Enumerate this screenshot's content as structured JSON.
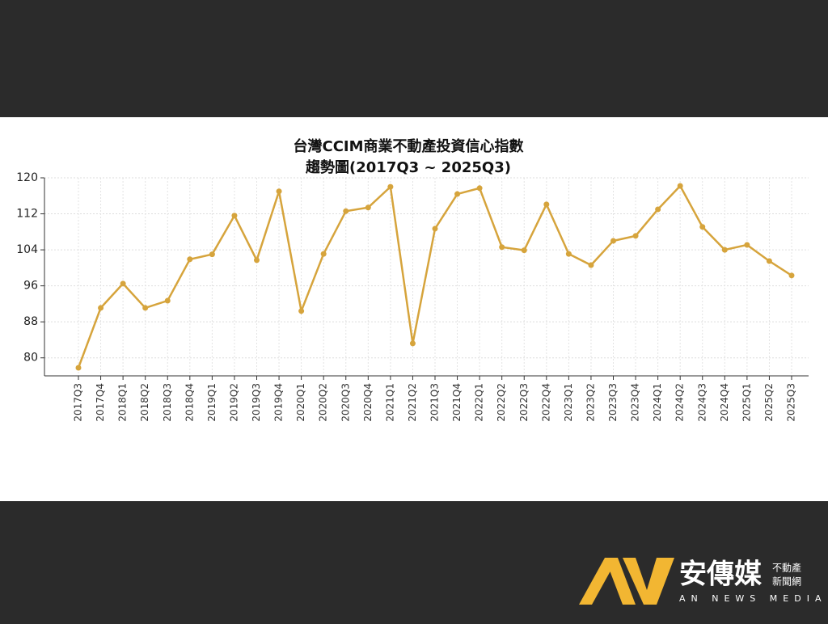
{
  "chart_data": {
    "type": "line",
    "title": "台灣CCIM商業不動產投資信心指數",
    "subtitle": "趨勢圖(2017Q3 ~ 2025Q3)",
    "categories": [
      "2017Q3",
      "2017Q4",
      "2018Q1",
      "2018Q2",
      "2018Q3",
      "2018Q4",
      "2019Q1",
      "2019Q2",
      "2019Q3",
      "2019Q4",
      "2020Q1",
      "2020Q2",
      "2020Q3",
      "2020Q4",
      "2021Q1",
      "2021Q2",
      "2021Q3",
      "2021Q4",
      "2022Q1",
      "2022Q2",
      "2022Q3",
      "2022Q4",
      "2023Q1",
      "2023Q2",
      "2023Q3",
      "2023Q4",
      "2024Q1",
      "2024Q2",
      "2024Q3",
      "2024Q4",
      "2025Q1",
      "2025Q2",
      "2025Q3"
    ],
    "values": [
      77.8,
      91.1,
      96.5,
      91.1,
      92.7,
      101.9,
      103.0,
      111.6,
      101.7,
      117.0,
      90.4,
      103.1,
      112.6,
      113.4,
      118.0,
      83.2,
      108.7,
      116.4,
      117.7,
      104.6,
      103.9,
      114.1,
      103.1,
      100.6,
      106.0,
      107.1,
      113.0,
      118.2,
      109.1,
      104.0,
      105.1,
      101.5,
      98.3
    ],
    "color": "#d6a43c",
    "ylim": [
      76,
      120
    ],
    "yticks": [
      80,
      88,
      96,
      104,
      112,
      120
    ],
    "grid": true
  },
  "logo": {
    "name": "安傳媒",
    "tag1": "不動產",
    "tag2": "新聞網",
    "english": "AN NEWS MEDIA"
  }
}
